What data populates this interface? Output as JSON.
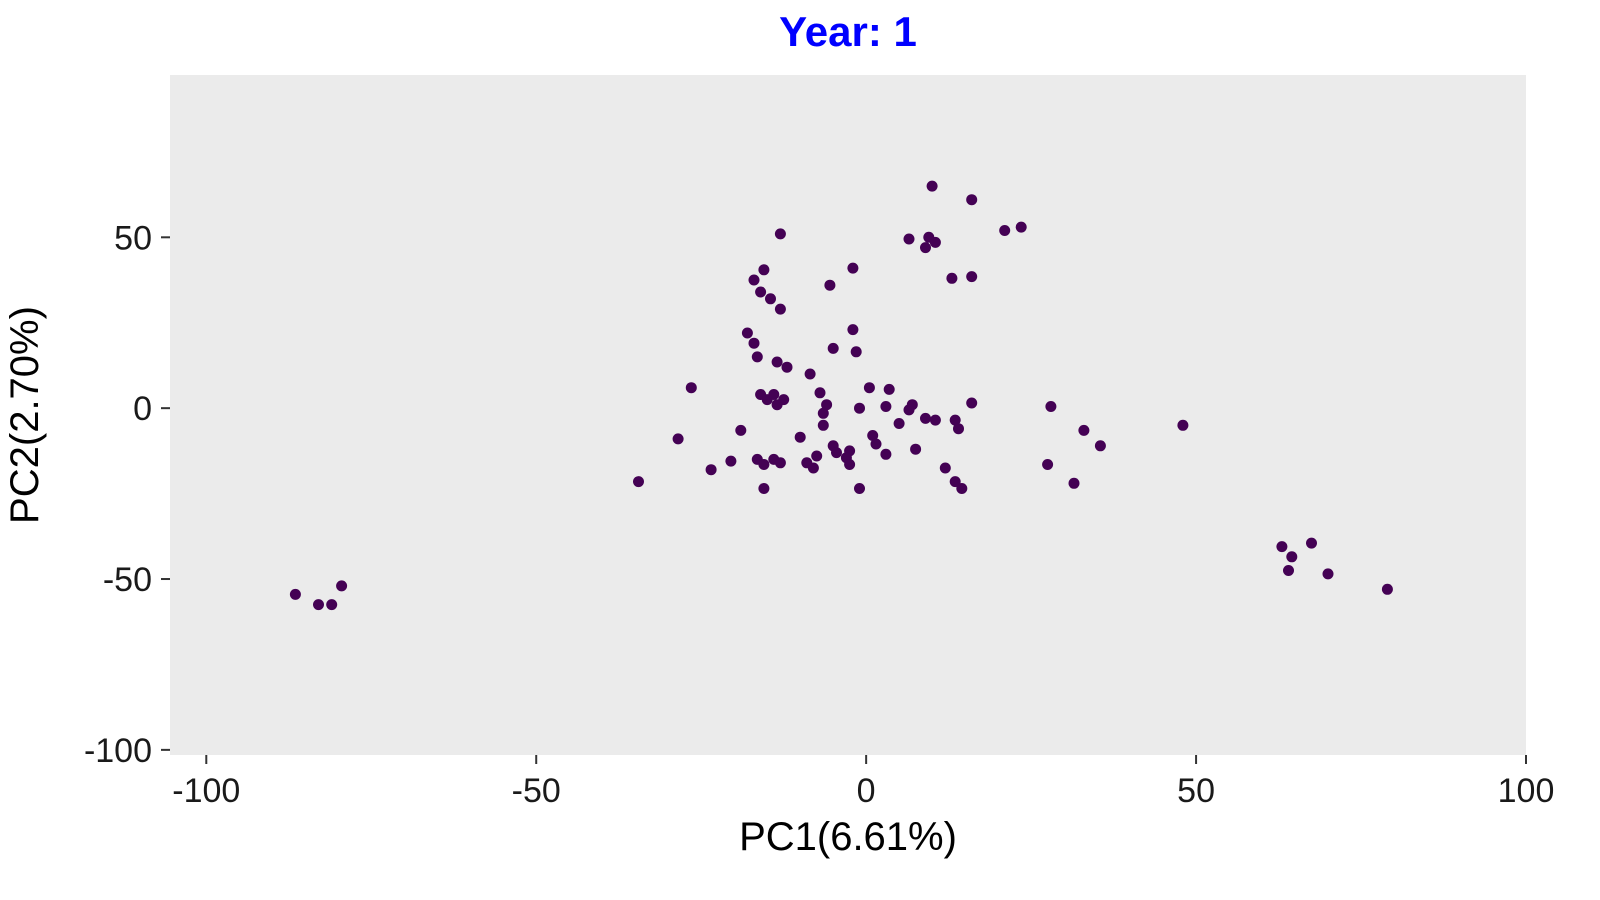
{
  "chart_data": {
    "type": "scatter",
    "title": "Year: 1",
    "title_color": "#0000FF",
    "xlabel": "PC1(6.61%)",
    "ylabel": "PC2(2.70%)",
    "xlim": [
      -105.5,
      100
    ],
    "ylim": [
      -101.5,
      97.5
    ],
    "xticks": [
      -100,
      -50,
      0,
      50,
      100
    ],
    "yticks": [
      -100,
      -50,
      0,
      50
    ],
    "grid": false,
    "legend": "none",
    "panel_bg": "#EBEBEB",
    "point_color": "#440154",
    "point_radius": 5.5,
    "points": [
      [
        10,
        65
      ],
      [
        16,
        61
      ],
      [
        21,
        52
      ],
      [
        23.5,
        53
      ],
      [
        -13,
        51
      ],
      [
        6.5,
        49.5
      ],
      [
        9.5,
        50
      ],
      [
        9,
        47
      ],
      [
        10.5,
        48.5
      ],
      [
        13,
        38
      ],
      [
        16,
        38.5
      ],
      [
        -15.5,
        40.5
      ],
      [
        -2,
        41
      ],
      [
        -5.5,
        36
      ],
      [
        -17,
        37.5
      ],
      [
        -16,
        34
      ],
      [
        -14.5,
        32
      ],
      [
        -13,
        29
      ],
      [
        -2,
        23
      ],
      [
        -17,
        19
      ],
      [
        -16.5,
        15
      ],
      [
        -5,
        17.5
      ],
      [
        -1.5,
        16.5
      ],
      [
        -12,
        12
      ],
      [
        -8.5,
        10
      ],
      [
        -26.5,
        6
      ],
      [
        -7,
        4.5
      ],
      [
        0.5,
        6
      ],
      [
        3.5,
        5.5
      ],
      [
        -16,
        4
      ],
      [
        -15,
        2.5
      ],
      [
        -14,
        4
      ],
      [
        -13.5,
        1
      ],
      [
        -12.5,
        2.5
      ],
      [
        -6,
        1
      ],
      [
        -6.5,
        -1.5
      ],
      [
        -1,
        0
      ],
      [
        3,
        0.5
      ],
      [
        7,
        1
      ],
      [
        6.5,
        -0.5
      ],
      [
        9,
        -3
      ],
      [
        10.5,
        -3.5
      ],
      [
        28,
        0.5
      ],
      [
        13.5,
        -3.5
      ],
      [
        16,
        1.5
      ],
      [
        -28.5,
        -9
      ],
      [
        -19,
        -6.5
      ],
      [
        14,
        -6
      ],
      [
        33,
        -6.5
      ],
      [
        48,
        -5
      ],
      [
        1,
        -8
      ],
      [
        1.5,
        -10.5
      ],
      [
        3,
        -13.5
      ],
      [
        -5,
        -11
      ],
      [
        -4.5,
        -13
      ],
      [
        -2.5,
        -12.5
      ],
      [
        -3,
        -14.5
      ],
      [
        -2.5,
        -16.5
      ],
      [
        7.5,
        -12
      ],
      [
        35.5,
        -11
      ],
      [
        -23.5,
        -18
      ],
      [
        -20.5,
        -15.5
      ],
      [
        -16.5,
        -15
      ],
      [
        -15.5,
        -16.5
      ],
      [
        -14,
        -15
      ],
      [
        -13,
        -16
      ],
      [
        -9,
        -16
      ],
      [
        -8,
        -17.5
      ],
      [
        12,
        -17.5
      ],
      [
        27.5,
        -16.5
      ],
      [
        -34.5,
        -21.5
      ],
      [
        -15.5,
        -23.5
      ],
      [
        -1,
        -23.5
      ],
      [
        13.5,
        -21.5
      ],
      [
        14.5,
        -23.5
      ],
      [
        31.5,
        -22
      ],
      [
        63,
        -40.5
      ],
      [
        67.5,
        -39.5
      ],
      [
        64.5,
        -43.5
      ],
      [
        64,
        -47.5
      ],
      [
        70,
        -48.5
      ],
      [
        79,
        -53
      ],
      [
        -86.5,
        -54.5
      ],
      [
        -83,
        -57.5
      ],
      [
        -81,
        -57.5
      ],
      [
        -79.5,
        -52
      ],
      [
        -6.5,
        -5
      ],
      [
        -10,
        -8.5
      ],
      [
        -7.5,
        -14
      ],
      [
        5,
        -4.5
      ],
      [
        -18,
        22
      ],
      [
        -13.5,
        13.5
      ]
    ]
  }
}
